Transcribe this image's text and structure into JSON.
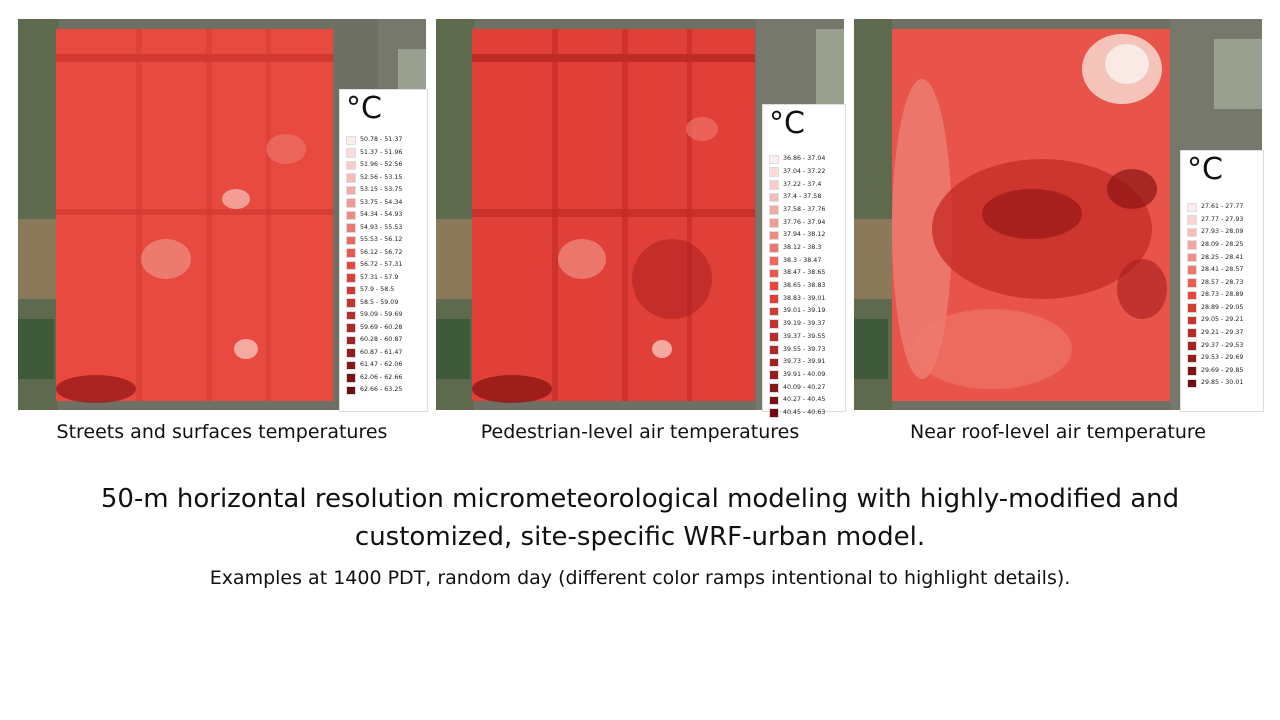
{
  "panels": [
    {
      "caption": "Streets and surfaces temperatures",
      "legend": {
        "unit": "°C",
        "items": [
          "50.78 - 51.37",
          "51.37 - 51.96",
          "51.96 - 52.56",
          "52.56 - 53.15",
          "53.15 - 53.75",
          "53.75 - 54.34",
          "54.34 - 54.93",
          "54.93 - 55.53",
          "55.53 - 56.12",
          "56.12 - 56.72",
          "56.72 - 57.31",
          "57.31 - 57.9",
          "57.9 - 58.5",
          "58.5 - 59.09",
          "59.09 - 59.69",
          "59.69 - 60.28",
          "60.28 - 60.87",
          "60.87 - 61.47",
          "61.47 - 62.06",
          "62.06 - 62.66",
          "62.66 - 63.25"
        ]
      }
    },
    {
      "caption": "Pedestrian-level air temperatures",
      "legend": {
        "unit": "°C",
        "items": [
          "36.86 - 37.04",
          "37.04 - 37.22",
          "37.22 - 37.4",
          "37.4 - 37.58",
          "37.58 - 37.76",
          "37.76 - 37.94",
          "37.94 - 38.12",
          "38.12 - 38.3",
          "38.3 - 38.47",
          "38.47 - 38.65",
          "38.65 - 38.83",
          "38.83 - 39.01",
          "39.01 - 39.19",
          "39.19 - 39.37",
          "39.37 - 39.55",
          "39.55 - 39.73",
          "39.73 - 39.91",
          "39.91 - 40.09",
          "40.09 - 40.27",
          "40.27 - 40.45",
          "40.45 - 40.63"
        ]
      }
    },
    {
      "caption": "Near roof-level air temperature",
      "legend": {
        "unit": "°C",
        "items": [
          "27.61 - 27.77",
          "27.77 - 27.93",
          "27.93 - 28.09",
          "28.09 - 28.25",
          "28.25 - 28.41",
          "28.41 - 28.57",
          "28.57 - 28.73",
          "28.73 - 28.89",
          "28.89 - 29.05",
          "29.05 - 29.21",
          "29.21 - 29.37",
          "29.37 - 29.53",
          "29.53 - 29.69",
          "29.69 - 29.85",
          "29.85 - 30.01"
        ]
      }
    }
  ],
  "headline": "50-m horizontal resolution micrometeorological modeling with highly-modified and customized, site-specific WRF-urban model.",
  "subline": "Examples at 1400 PDT, random day (different color ramps intentional to highlight details).",
  "colors": {
    "ramp_light": "#fbeeec",
    "ramp_dark": "#6e0c10",
    "map_base": "#e8463c"
  }
}
